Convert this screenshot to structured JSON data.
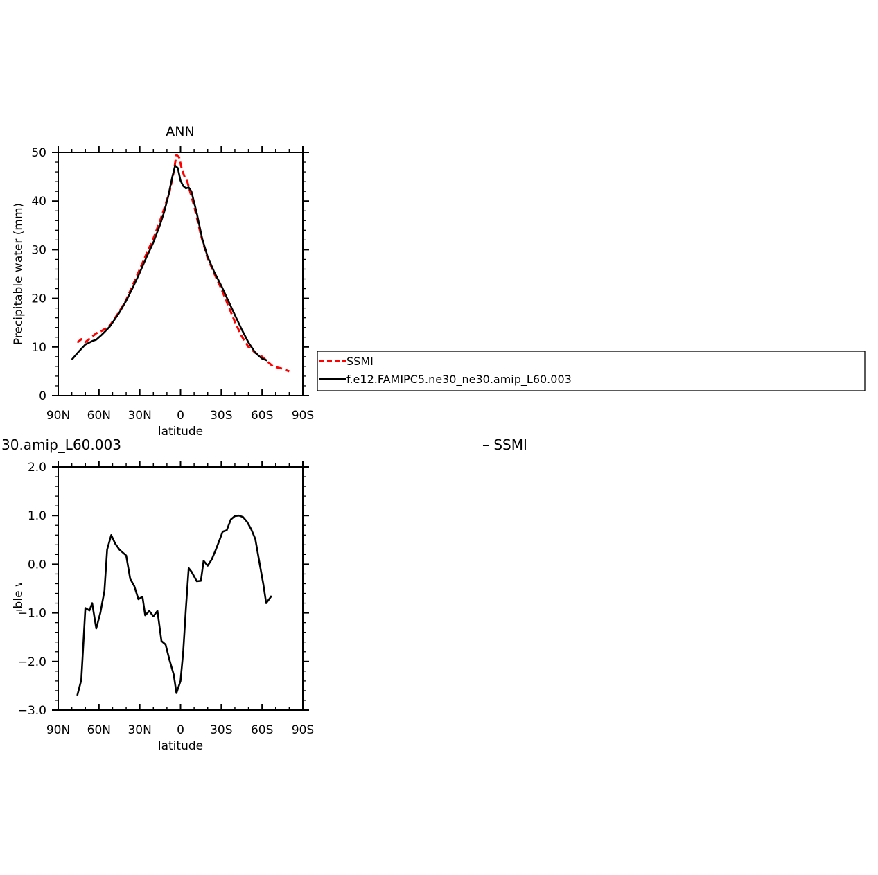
{
  "chart_data": [
    {
      "type": "line",
      "title": "ANN",
      "xlabel": "latitude",
      "ylabel": "Precipitable water (mm)",
      "xlim": [
        90,
        -90
      ],
      "ylim": [
        0,
        50
      ],
      "x_tick_values": [
        90,
        60,
        30,
        0,
        -30,
        -60,
        -90
      ],
      "x_tick_labels": [
        "90N",
        "60N",
        "30N",
        "0",
        "30S",
        "60S",
        "90S"
      ],
      "y_tick_values": [
        0,
        10,
        20,
        30,
        40,
        50
      ],
      "y_tick_labels": [
        "0",
        "10",
        "20",
        "30",
        "40",
        "50"
      ],
      "series": [
        {
          "name": "SSMI",
          "color": "#ff0000",
          "dash": "dashed",
          "points": [
            [
              76,
              10.9
            ],
            [
              73,
              11.6
            ],
            [
              70,
              11.0
            ],
            [
              66,
              11.9
            ],
            [
              62,
              12.8
            ],
            [
              58,
              13.3
            ],
            [
              52,
              14.4
            ],
            [
              45,
              17.3
            ],
            [
              40,
              19.7
            ],
            [
              35,
              22.8
            ],
            [
              30,
              26.0
            ],
            [
              25,
              29.2
            ],
            [
              20,
              32.3
            ],
            [
              15,
              36.0
            ],
            [
              12,
              38.5
            ],
            [
              8,
              42.0
            ],
            [
              5,
              46.0
            ],
            [
              3,
              49.5
            ],
            [
              1,
              49.0
            ],
            [
              -1,
              46.5
            ],
            [
              -3,
              45.0
            ],
            [
              -5,
              44.0
            ],
            [
              -7,
              42.0
            ],
            [
              -10,
              39.0
            ],
            [
              -15,
              33.0
            ],
            [
              -20,
              28.2
            ],
            [
              -25,
              25.0
            ],
            [
              -30,
              22.0
            ],
            [
              -35,
              18.6
            ],
            [
              -40,
              15.2
            ],
            [
              -45,
              12.2
            ],
            [
              -50,
              10.0
            ],
            [
              -55,
              8.8
            ],
            [
              -60,
              8.0
            ],
            [
              -64,
              7.0
            ],
            [
              -68,
              6.0
            ],
            [
              -74,
              5.6
            ],
            [
              -80,
              5.0
            ]
          ]
        },
        {
          "name": "f.e12.FAMIPC5.ne30_ne30.amip_L60.003",
          "color": "#000000",
          "dash": "solid",
          "points": [
            [
              80,
              7.4
            ],
            [
              75,
              9.0
            ],
            [
              70,
              10.5
            ],
            [
              65,
              11.2
            ],
            [
              62,
              11.5
            ],
            [
              58,
              12.5
            ],
            [
              52,
              14.2
            ],
            [
              45,
              17.1
            ],
            [
              40,
              19.5
            ],
            [
              35,
              22.3
            ],
            [
              30,
              25.3
            ],
            [
              25,
              28.5
            ],
            [
              20,
              31.5
            ],
            [
              15,
              35.2
            ],
            [
              12,
              37.8
            ],
            [
              9,
              41.0
            ],
            [
              6,
              45.0
            ],
            [
              4,
              47.3
            ],
            [
              2,
              46.8
            ],
            [
              0,
              44.2
            ],
            [
              -2,
              43.1
            ],
            [
              -4,
              42.6
            ],
            [
              -6,
              42.8
            ],
            [
              -8,
              42.0
            ],
            [
              -12,
              37.5
            ],
            [
              -16,
              32.2
            ],
            [
              -20,
              28.5
            ],
            [
              -25,
              25.3
            ],
            [
              -30,
              22.6
            ],
            [
              -35,
              19.6
            ],
            [
              -40,
              16.6
            ],
            [
              -45,
              13.6
            ],
            [
              -50,
              10.9
            ],
            [
              -55,
              8.8
            ],
            [
              -60,
              7.6
            ],
            [
              -64,
              7.2
            ]
          ]
        }
      ],
      "legend": {
        "placement": "right",
        "entries": [
          "SSMI",
          "f.e12.FAMIPC5.ne30_ne30.amip_L60.003"
        ]
      }
    },
    {
      "type": "line",
      "title": "30.amip_L60.003",
      "title_right": "– SSMI",
      "xlabel": "latitude",
      "ylabel": "Precipitable water (mm)",
      "xlim": [
        90,
        -90
      ],
      "ylim": [
        -3.0,
        2.0
      ],
      "x_tick_values": [
        90,
        60,
        30,
        0,
        -30,
        -60,
        -90
      ],
      "x_tick_labels": [
        "90N",
        "60N",
        "30N",
        "0",
        "30S",
        "60S",
        "90S"
      ],
      "y_tick_values": [
        2.0,
        1.0,
        0.0,
        -1.0,
        -2.0,
        -3.0
      ],
      "y_tick_labels": [
        "2.0",
        "1.0",
        "0.0",
        "−1.0",
        "−2.0",
        "−3.0"
      ],
      "series": [
        {
          "color": "#000000",
          "dash": "solid",
          "points": [
            [
              76,
              -2.7
            ],
            [
              73,
              -2.38
            ],
            [
              70,
              -0.9
            ],
            [
              67,
              -0.95
            ],
            [
              65,
              -0.8
            ],
            [
              62,
              -1.32
            ],
            [
              59,
              -1.0
            ],
            [
              56,
              -0.55
            ],
            [
              54,
              0.3
            ],
            [
              51,
              0.6
            ],
            [
              48,
              0.42
            ],
            [
              45,
              0.3
            ],
            [
              40,
              0.18
            ],
            [
              37,
              -0.3
            ],
            [
              34,
              -0.45
            ],
            [
              31,
              -0.72
            ],
            [
              28,
              -0.67
            ],
            [
              26,
              -1.05
            ],
            [
              23,
              -0.96
            ],
            [
              20,
              -1.07
            ],
            [
              17,
              -0.96
            ],
            [
              14,
              -1.58
            ],
            [
              11,
              -1.65
            ],
            [
              8,
              -1.98
            ],
            [
              5,
              -2.27
            ],
            [
              3,
              -2.65
            ],
            [
              0,
              -2.4
            ],
            [
              -2,
              -1.8
            ],
            [
              -4,
              -0.9
            ],
            [
              -6,
              -0.08
            ],
            [
              -8,
              -0.15
            ],
            [
              -12,
              -0.35
            ],
            [
              -15,
              -0.34
            ],
            [
              -17,
              0.07
            ],
            [
              -20,
              -0.03
            ],
            [
              -23,
              0.1
            ],
            [
              -26,
              0.3
            ],
            [
              -29,
              0.52
            ],
            [
              -31,
              0.67
            ],
            [
              -34,
              0.7
            ],
            [
              -37,
              0.92
            ],
            [
              -40,
              0.99
            ],
            [
              -43,
              1.0
            ],
            [
              -46,
              0.97
            ],
            [
              -49,
              0.87
            ],
            [
              -52,
              0.72
            ],
            [
              -55,
              0.52
            ],
            [
              -58,
              0.05
            ],
            [
              -61,
              -0.42
            ],
            [
              -63,
              -0.8
            ],
            [
              -67,
              -0.65
            ]
          ]
        }
      ]
    }
  ]
}
